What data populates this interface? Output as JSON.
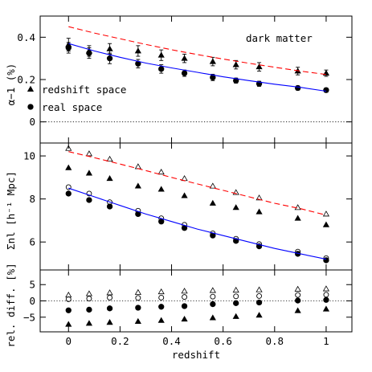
{
  "chart_data": [
    {
      "type": "scatter",
      "panel": "top",
      "ylabel": "α−1 (%)",
      "ylim": [
        -0.1,
        0.5
      ],
      "yticks": [
        0,
        0.2,
        0.4
      ],
      "yticklabels": [
        "0",
        "0.2",
        "0.4"
      ],
      "annotation": "dark matter",
      "reference_line": {
        "y": 0,
        "style": "dotted"
      },
      "legend": {
        "placement": "left",
        "entries": [
          {
            "marker": "triangle",
            "label": "redshift space"
          },
          {
            "marker": "circle",
            "label": "real space"
          }
        ]
      },
      "series": [
        {
          "marker": "triangle",
          "x": [
            0.0,
            0.08,
            0.16,
            0.27,
            0.36,
            0.45,
            0.56,
            0.65,
            0.74,
            0.89,
            1.0
          ],
          "y": [
            0.365,
            0.335,
            0.345,
            0.335,
            0.315,
            0.3,
            0.285,
            0.27,
            0.26,
            0.24,
            0.23
          ],
          "yerr": [
            0.03,
            0.025,
            0.025,
            0.025,
            0.025,
            0.02,
            0.02,
            0.02,
            0.02,
            0.018,
            0.015
          ]
        },
        {
          "marker": "circle",
          "x": [
            0.0,
            0.08,
            0.16,
            0.27,
            0.36,
            0.45,
            0.56,
            0.65,
            0.74,
            0.89,
            1.0
          ],
          "y": [
            0.35,
            0.325,
            0.3,
            0.275,
            0.25,
            0.23,
            0.21,
            0.195,
            0.18,
            0.16,
            0.15
          ],
          "yerr": [
            0.025,
            0.025,
            0.025,
            0.02,
            0.02,
            0.015,
            0.015,
            0.012,
            0.012,
            0.01,
            0.01
          ]
        },
        {
          "line": "solid",
          "color": "#0000ff",
          "x": [
            0,
            0.1,
            0.2,
            0.3,
            0.4,
            0.5,
            0.6,
            0.7,
            0.8,
            0.9,
            1.0
          ],
          "y": [
            0.37,
            0.335,
            0.305,
            0.278,
            0.255,
            0.234,
            0.213,
            0.195,
            0.178,
            0.163,
            0.145
          ]
        },
        {
          "line": "dashed",
          "color": "#ff0000",
          "x": [
            0,
            0.1,
            0.2,
            0.3,
            0.4,
            0.5,
            0.6,
            0.7,
            0.8,
            0.9,
            1.0
          ],
          "y": [
            0.45,
            0.42,
            0.393,
            0.366,
            0.341,
            0.318,
            0.297,
            0.277,
            0.258,
            0.24,
            0.224
          ]
        }
      ]
    },
    {
      "type": "scatter",
      "panel": "middle",
      "ylabel": "Σnl [h⁻¹ Mpc]",
      "ylim": [
        4.7,
        10.6
      ],
      "yticks": [
        6,
        8,
        10
      ],
      "yticklabels": [
        "6",
        "8",
        "10"
      ],
      "series": [
        {
          "marker": "triangle-open",
          "x": [
            0.0,
            0.08,
            0.16,
            0.27,
            0.36,
            0.45,
            0.56,
            0.65,
            0.74,
            0.89,
            1.0
          ],
          "y": [
            10.35,
            10.1,
            9.85,
            9.5,
            9.25,
            8.95,
            8.6,
            8.3,
            8.05,
            7.6,
            7.3
          ]
        },
        {
          "marker": "triangle",
          "x": [
            0.0,
            0.08,
            0.16,
            0.27,
            0.36,
            0.45,
            0.56,
            0.65,
            0.74,
            0.89,
            1.0
          ],
          "y": [
            9.45,
            9.2,
            8.95,
            8.6,
            8.45,
            8.15,
            7.8,
            7.6,
            7.4,
            7.1,
            6.8
          ]
        },
        {
          "marker": "circle-open",
          "x": [
            0.0,
            0.08,
            0.16,
            0.27,
            0.36,
            0.45,
            0.56,
            0.65,
            0.74,
            0.89,
            1.0
          ],
          "y": [
            8.55,
            8.25,
            7.85,
            7.45,
            7.1,
            6.8,
            6.4,
            6.15,
            5.9,
            5.55,
            5.25
          ]
        },
        {
          "marker": "circle",
          "x": [
            0.0,
            0.08,
            0.16,
            0.27,
            0.36,
            0.45,
            0.56,
            0.65,
            0.74,
            0.89,
            1.0
          ],
          "y": [
            8.25,
            7.95,
            7.65,
            7.3,
            6.95,
            6.65,
            6.3,
            6.05,
            5.8,
            5.45,
            5.15
          ]
        },
        {
          "line": "solid",
          "color": "#0000ff",
          "x": [
            0,
            0.1,
            0.2,
            0.3,
            0.4,
            0.5,
            0.6,
            0.7,
            0.8,
            0.9,
            1.0
          ],
          "y": [
            8.5,
            8.1,
            7.7,
            7.3,
            6.95,
            6.6,
            6.3,
            6.0,
            5.7,
            5.45,
            5.2
          ]
        },
        {
          "line": "dashed",
          "color": "#ff0000",
          "x": [
            0,
            0.1,
            0.2,
            0.3,
            0.4,
            0.5,
            0.6,
            0.7,
            0.8,
            0.9,
            1.0
          ],
          "y": [
            10.2,
            9.92,
            9.62,
            9.32,
            9.0,
            8.7,
            8.4,
            8.1,
            7.8,
            7.55,
            7.25
          ]
        }
      ]
    },
    {
      "type": "scatter",
      "panel": "bottom",
      "ylabel": "rel. diff. [%]",
      "xlabel": "redshift",
      "ylim": [
        -9.5,
        9.5
      ],
      "xlim": [
        -0.11,
        1.1
      ],
      "yticks": [
        -5,
        0,
        5
      ],
      "yticklabels": [
        "−5",
        "0",
        "5"
      ],
      "xticks": [
        0,
        0.2,
        0.4,
        0.6,
        0.8,
        1.0
      ],
      "xticklabels": [
        "0",
        "0.2",
        "0.4",
        "0.6",
        "0.8",
        "1"
      ],
      "reference_line": {
        "y": 0,
        "style": "dotted"
      },
      "series": [
        {
          "marker": "triangle-open",
          "x": [
            0.0,
            0.08,
            0.16,
            0.27,
            0.36,
            0.45,
            0.56,
            0.65,
            0.74,
            0.89,
            1.0
          ],
          "y": [
            1.8,
            2.2,
            2.5,
            2.6,
            2.8,
            3.0,
            3.2,
            3.3,
            3.4,
            3.6,
            3.7
          ]
        },
        {
          "marker": "circle-open",
          "x": [
            0.0,
            0.08,
            0.16,
            0.27,
            0.36,
            0.45,
            0.56,
            0.65,
            0.74,
            0.89,
            1.0
          ],
          "y": [
            0.5,
            0.7,
            1.0,
            0.9,
            1.0,
            1.2,
            1.3,
            1.4,
            1.5,
            1.8,
            1.9
          ]
        },
        {
          "marker": "circle",
          "x": [
            0.0,
            0.08,
            0.16,
            0.27,
            0.36,
            0.45,
            0.56,
            0.65,
            0.74,
            0.89,
            1.0
          ],
          "y": [
            -2.9,
            -2.7,
            -2.3,
            -2.1,
            -1.8,
            -1.6,
            -1.0,
            -0.7,
            -0.5,
            0.1,
            0.3
          ]
        },
        {
          "marker": "triangle",
          "x": [
            0.0,
            0.08,
            0.16,
            0.27,
            0.36,
            0.45,
            0.56,
            0.65,
            0.74,
            0.89,
            1.0
          ],
          "y": [
            -7.2,
            -6.9,
            -6.6,
            -6.3,
            -6.0,
            -5.6,
            -5.2,
            -4.8,
            -4.4,
            -3.0,
            -2.5
          ]
        }
      ]
    }
  ]
}
